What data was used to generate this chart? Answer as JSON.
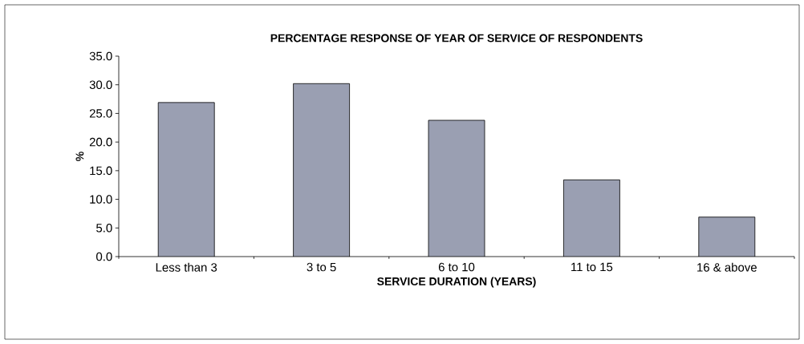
{
  "chart_data": {
    "type": "bar",
    "title": "PERCENTAGE RESPONSE OF YEAR OF SERVICE OF RESPONDENTS",
    "xlabel": "SERVICE DURATION (YEARS)",
    "ylabel": "%",
    "categories": [
      "Less than 3",
      "3 to 5",
      "6 to 10",
      "11 to 15",
      "16 & above"
    ],
    "values": [
      26.9,
      30.2,
      23.8,
      13.4,
      6.9
    ],
    "color": "#9a9fb2",
    "ylim": [
      0,
      35
    ],
    "yticks": [
      {
        "value": 0,
        "label": "0.0"
      },
      {
        "value": 5,
        "label": "5.0"
      },
      {
        "value": 10,
        "label": "10.0"
      },
      {
        "value": 15,
        "label": "15.0"
      },
      {
        "value": 20,
        "label": "20.0"
      },
      {
        "value": 25,
        "label": "25.0"
      },
      {
        "value": 30,
        "label": "30.0"
      },
      {
        "value": 35,
        "label": "35.0"
      }
    ],
    "grid": false
  }
}
